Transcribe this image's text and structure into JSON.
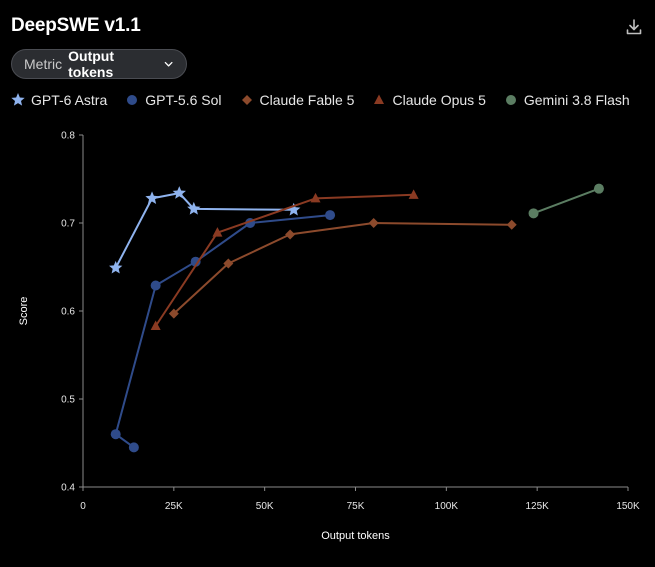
{
  "title": "DeepSWE v1.1",
  "download_icon": "download-icon",
  "metric": {
    "label": "Metric",
    "value": "Output tokens",
    "icon": "chevron-down-icon"
  },
  "chart_data": {
    "type": "line",
    "xlabel": "Output tokens",
    "ylabel": "Score",
    "xlim": [
      0,
      150000
    ],
    "ylim": [
      0.4,
      0.8
    ],
    "x_ticks": [
      0,
      25000,
      50000,
      75000,
      100000,
      125000,
      150000
    ],
    "x_tick_labels": [
      "0",
      "25K",
      "50K",
      "75K",
      "100K",
      "125K",
      "150K"
    ],
    "y_ticks": [
      0.4,
      0.5,
      0.6,
      0.7,
      0.8
    ],
    "y_tick_labels": [
      "0.4",
      "0.5",
      "0.6",
      "0.7",
      "0.8"
    ],
    "grid": false,
    "legend_position": "top",
    "series": [
      {
        "name": "GPT-6 Astra",
        "marker": "star",
        "color": "#8fb3ee",
        "points": [
          [
            9000,
            0.649
          ],
          [
            19000,
            0.728
          ],
          [
            26500,
            0.734
          ],
          [
            30500,
            0.716
          ],
          [
            58000,
            0.715
          ]
        ]
      },
      {
        "name": "GPT-5.6 Sol",
        "marker": "circle",
        "color": "#2f4b8a",
        "points": [
          [
            14000,
            0.445
          ],
          [
            9000,
            0.46
          ],
          [
            20000,
            0.629
          ],
          [
            31000,
            0.656
          ],
          [
            46000,
            0.7
          ],
          [
            68000,
            0.709
          ]
        ]
      },
      {
        "name": "Claude Fable 5",
        "marker": "diamond",
        "color": "#8c4a2c",
        "points": [
          [
            25000,
            0.597
          ],
          [
            40000,
            0.654
          ],
          [
            57000,
            0.687
          ],
          [
            80000,
            0.7
          ],
          [
            118000,
            0.698
          ]
        ]
      },
      {
        "name": "Claude Opus 5",
        "marker": "triangle",
        "color": "#8a3a22",
        "points": [
          [
            20000,
            0.583
          ],
          [
            37000,
            0.689
          ],
          [
            64000,
            0.728
          ],
          [
            91000,
            0.732
          ]
        ]
      },
      {
        "name": "Gemini 3.8 Flash",
        "marker": "circle",
        "color": "#5b7d62",
        "points": [
          [
            124000,
            0.711
          ],
          [
            142000,
            0.739
          ]
        ]
      }
    ]
  }
}
